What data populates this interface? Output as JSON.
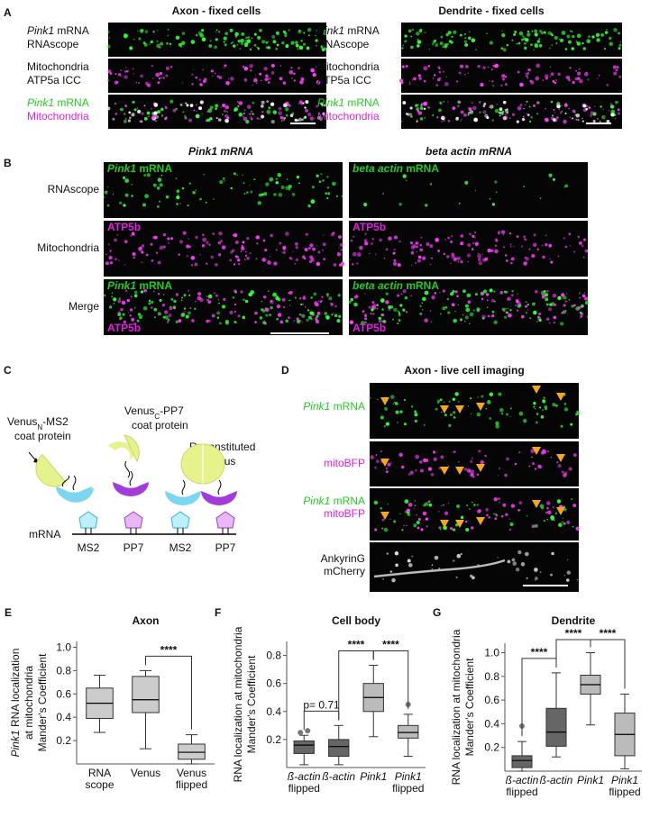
{
  "A": {
    "label": "A",
    "titles": [
      "Axon - fixed cells",
      "Dendrite - fixed cells"
    ],
    "rows": [
      {
        "italic": "Pink1",
        "line1": " mRNA",
        "line2": "RNAscope"
      },
      {
        "line1": "Mitochondria",
        "line2": "ATP5a ICC"
      },
      {
        "italic": "Pink1",
        "line1": " mRNA",
        "line2": "Mitochondria"
      }
    ]
  },
  "B": {
    "label": "B",
    "titles": [
      "Pink1 mRNA",
      "beta actin mRNA"
    ],
    "rows": [
      "RNAscope",
      "Mitochondria",
      "Merge"
    ],
    "genes": [
      "Pink1",
      "beta actin"
    ],
    "mrna": " mRNA",
    "mito": "ATP5b"
  },
  "C": {
    "label": "C",
    "venus_n": [
      "Venus",
      "N",
      "-MS2",
      "coat protein"
    ],
    "venus_c": [
      "Venus",
      "C",
      "-PP7",
      "coat protein"
    ],
    "reconstituted": [
      "Reconstituted",
      "Venus"
    ],
    "mrna": "mRNA",
    "sites": [
      "MS2",
      "PP7",
      "MS2",
      "PP7"
    ]
  },
  "D": {
    "label": "D",
    "title": "Axon - live cell imaging",
    "gene": "Pink1",
    "mrna": " mRNA",
    "mito": "mitoBFP",
    "ankyrin": [
      "AnkyrinG",
      "mCherry"
    ]
  },
  "chart_data": [
    {
      "type": "box",
      "panel": "E",
      "title": "Axon",
      "ylabel": [
        [
          "Pink1",
          " RNA localization"
        ],
        [
          "at mitochondria"
        ],
        [
          "Mander's Coefficient"
        ]
      ],
      "categories": [
        [
          "RNA",
          "scope"
        ],
        [
          "Venus"
        ],
        [
          "Venus",
          "flipped"
        ]
      ],
      "colors": [
        "#cccccc",
        "#cccccc",
        "#cccccc"
      ],
      "boxes": [
        {
          "low": 0.27,
          "q1": 0.39,
          "median": 0.52,
          "q3": 0.65,
          "high": 0.76,
          "outliers": []
        },
        {
          "low": 0.13,
          "q1": 0.44,
          "median": 0.55,
          "q3": 0.75,
          "high": 0.8,
          "outliers": []
        },
        {
          "low": 0.0,
          "q1": 0.04,
          "median": 0.1,
          "q3": 0.17,
          "high": 0.25,
          "outliers": []
        }
      ],
      "ylim": [
        0,
        1.05
      ],
      "yticks": [
        0.2,
        0.4,
        0.6,
        0.8,
        {
          "value": 1,
          "label": "1.0"
        }
      ],
      "annotations": [
        {
          "label": "****",
          "pair": [
            1,
            2
          ]
        }
      ]
    },
    {
      "type": "box",
      "panel": "F",
      "title": "Cell body",
      "ylabel": [
        [
          "RNA localization at mitochondria"
        ],
        [
          "Mander's Coefficient"
        ]
      ],
      "categories": [
        [
          "ß-actin",
          "flipped"
        ],
        [
          "ß-actin"
        ],
        [
          "Pink1"
        ],
        [
          "Pink1",
          "flipped"
        ]
      ],
      "category_style": "italic",
      "colors": [
        "#666666",
        "#666666",
        "#bbbbbb",
        "#bbbbbb"
      ],
      "boxes": [
        {
          "low": 0.02,
          "q1": 0.1,
          "median": 0.16,
          "q3": 0.19,
          "high": 0.23,
          "outliers": [
            0.25,
            0.25
          ]
        },
        {
          "low": 0.02,
          "q1": 0.08,
          "median": 0.15,
          "q3": 0.2,
          "high": 0.3,
          "outliers": []
        },
        {
          "low": 0.22,
          "q1": 0.4,
          "median": 0.5,
          "q3": 0.6,
          "high": 0.73,
          "outliers": []
        },
        {
          "low": 0.08,
          "q1": 0.21,
          "median": 0.25,
          "q3": 0.3,
          "high": 0.38,
          "outliers": [
            0.45
          ]
        }
      ],
      "ylim": [
        0,
        0.9
      ],
      "yticks": [
        0.2,
        0.4,
        0.6,
        0.8
      ],
      "annotations": [
        {
          "label": "p= 0.71",
          "pair": [
            0,
            1
          ]
        },
        {
          "label": "****",
          "pair": [
            1,
            2
          ]
        },
        {
          "label": "****",
          "pair": [
            2,
            3
          ]
        }
      ]
    },
    {
      "type": "box",
      "panel": "G",
      "title": "Dendrite",
      "ylabel": [
        [
          "RNA localization at mitochondria"
        ],
        [
          "Mander's Coefficient"
        ]
      ],
      "categories": [
        [
          "ß-actin",
          "flipped"
        ],
        [
          "ß-actin"
        ],
        [
          "Pink1"
        ],
        [
          "Pink1",
          "flipped"
        ]
      ],
      "category_style": "italic",
      "colors": [
        "#666666",
        "#666666",
        "#bbbbbb",
        "#bbbbbb"
      ],
      "boxes": [
        {
          "low": 0.0,
          "q1": 0.03,
          "median": 0.09,
          "q3": 0.13,
          "high": 0.25,
          "outliers": [
            0.38
          ]
        },
        {
          "low": 0.12,
          "q1": 0.21,
          "median": 0.33,
          "q3": 0.53,
          "high": 0.83,
          "outliers": []
        },
        {
          "low": 0.39,
          "q1": 0.65,
          "median": 0.73,
          "q3": 0.81,
          "high": 1.0,
          "outliers": []
        },
        {
          "low": 0.02,
          "q1": 0.13,
          "median": 0.31,
          "q3": 0.49,
          "high": 0.65,
          "outliers": []
        }
      ],
      "ylim": [
        0,
        1.08
      ],
      "yticks": [
        0.2,
        0.4,
        0.6,
        0.8,
        {
          "value": 1,
          "label": "1.0"
        }
      ],
      "annotations": [
        {
          "label": "****",
          "pair": [
            0,
            1
          ]
        },
        {
          "label": "****",
          "pair": [
            1,
            2
          ]
        },
        {
          "label": "****",
          "pair": [
            2,
            3
          ]
        }
      ]
    }
  ]
}
